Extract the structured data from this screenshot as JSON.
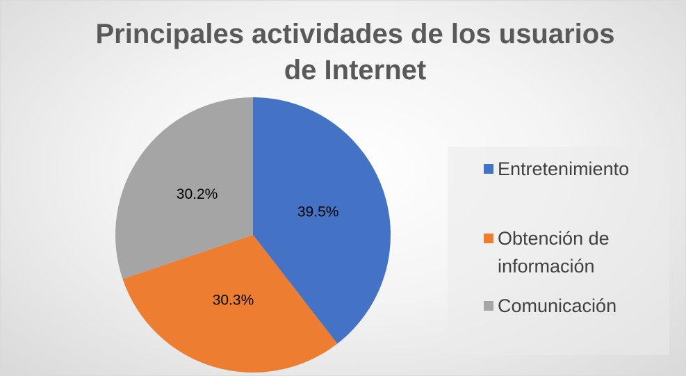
{
  "chart_data": {
    "type": "pie",
    "title": "Principales actividades de los usuarios de Internet",
    "categories": [
      "Entretenimiento",
      "Obtención de información",
      "Comunicación"
    ],
    "values": [
      39.5,
      30.3,
      30.2
    ],
    "value_labels": [
      "39.5%",
      "30.3%",
      "30.2%"
    ],
    "colors": [
      "#4472c4",
      "#ed7d31",
      "#a5a5a5"
    ],
    "legend": "right"
  }
}
